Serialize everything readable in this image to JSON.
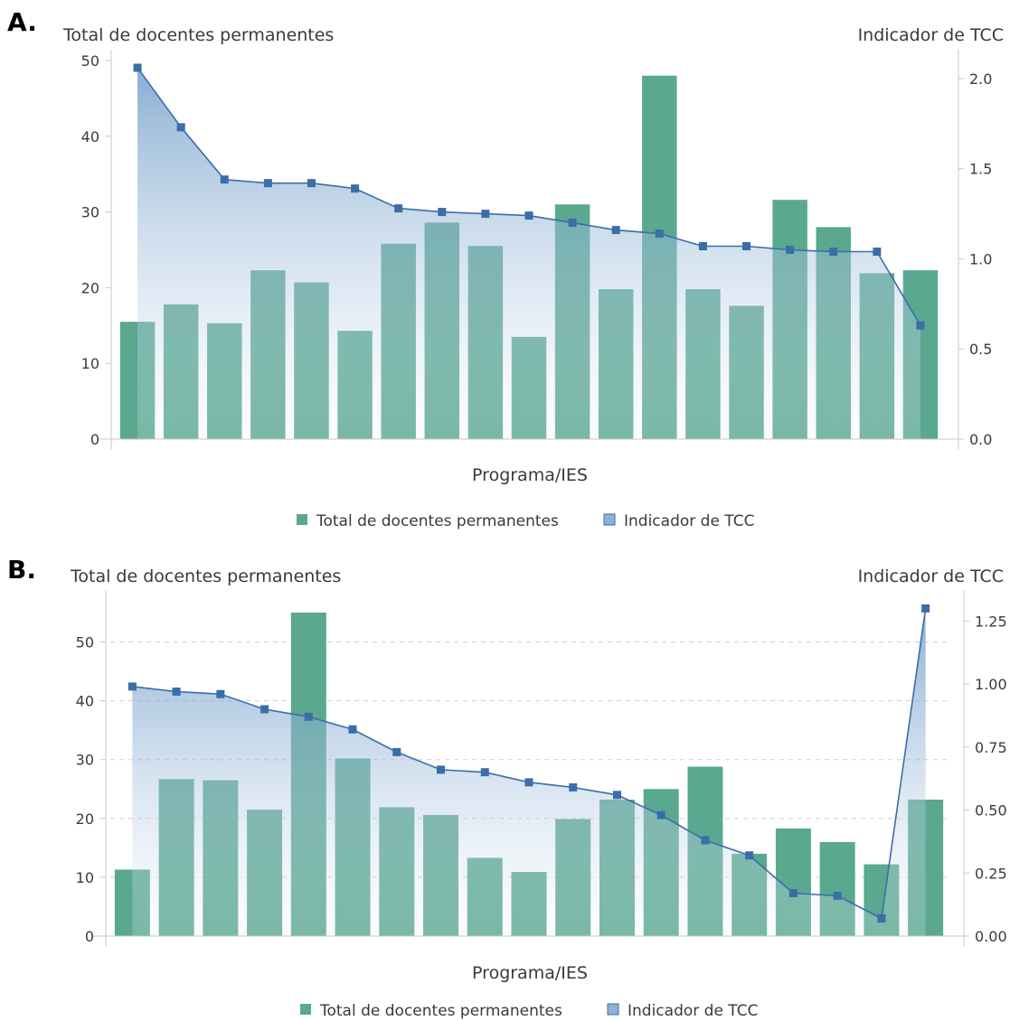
{
  "panels": [
    {
      "letter": "A."
    },
    {
      "letter": "B."
    }
  ],
  "colors": {
    "bar": "#5aa88f",
    "line": "#3a6ea8",
    "marker": "#3a6ea8",
    "area_top": "#5c8fc2",
    "area_bottom": "#eef3fa",
    "axis": "#c8c8c8",
    "grid": "#cfcfcf"
  },
  "chart_data": [
    {
      "type": "bar",
      "panel": "A.",
      "title_left": "Total de docentes permanentes",
      "title_right": "Indicador de TCC",
      "xlabel": "Programa/IES",
      "ylim_left": [
        0,
        50
      ],
      "yticks_left": [
        "0",
        "10",
        "20",
        "30",
        "40",
        "50"
      ],
      "ylim_right": [
        0,
        2.1
      ],
      "yticks_right": [
        "0.0",
        "0.5",
        "1.0",
        "1.5",
        "2.0"
      ],
      "yticks_right_values": [
        0,
        0.5,
        1.0,
        1.5,
        2.0
      ],
      "grid": false,
      "legend_position": "bottom",
      "series": [
        {
          "name": "Total de docentes permanentes",
          "kind": "bar",
          "values": [
            15.5,
            17.8,
            15.3,
            22.3,
            20.7,
            14.3,
            25.8,
            28.6,
            25.5,
            13.5,
            31.0,
            19.8,
            48.0,
            19.8,
            17.6,
            31.6,
            28.0,
            21.9,
            22.3
          ]
        },
        {
          "name": "Indicador de TCC",
          "kind": "area-line",
          "axis": "right",
          "values": [
            2.06,
            1.73,
            1.44,
            1.42,
            1.42,
            1.39,
            1.28,
            1.26,
            1.25,
            1.24,
            1.2,
            1.16,
            1.14,
            1.07,
            1.07,
            1.05,
            1.04,
            1.04,
            0.63
          ]
        }
      ]
    },
    {
      "type": "bar",
      "panel": "B.",
      "title_left": "Total de docentes permanentes",
      "title_right": "Indicador de TCC",
      "xlabel": "Programa/IES",
      "ylim_left": [
        0,
        57
      ],
      "yticks_left": [
        "0",
        "10",
        "20",
        "30",
        "40",
        "50"
      ],
      "ylim_right": [
        0,
        1.33
      ],
      "yticks_right": [
        "0.00",
        "0.25",
        "0.50",
        "0.75",
        "1.00",
        "1.25"
      ],
      "yticks_right_values": [
        0,
        0.25,
        0.5,
        0.75,
        1.0,
        1.25
      ],
      "grid": true,
      "legend_position": "bottom",
      "series": [
        {
          "name": "Total de docentes permanentes",
          "kind": "bar",
          "values": [
            11.3,
            26.7,
            26.5,
            21.5,
            55.0,
            30.2,
            21.9,
            20.6,
            13.3,
            10.9,
            19.9,
            23.2,
            25.0,
            28.8,
            14.0,
            18.3,
            16.0,
            12.2,
            23.2
          ]
        },
        {
          "name": "Indicador de TCC",
          "kind": "area-line",
          "axis": "right",
          "values": [
            0.99,
            0.97,
            0.96,
            0.9,
            0.87,
            0.82,
            0.73,
            0.66,
            0.65,
            0.61,
            0.59,
            0.56,
            0.48,
            0.38,
            0.32,
            0.17,
            0.16,
            0.07,
            1.3
          ]
        }
      ]
    }
  ]
}
